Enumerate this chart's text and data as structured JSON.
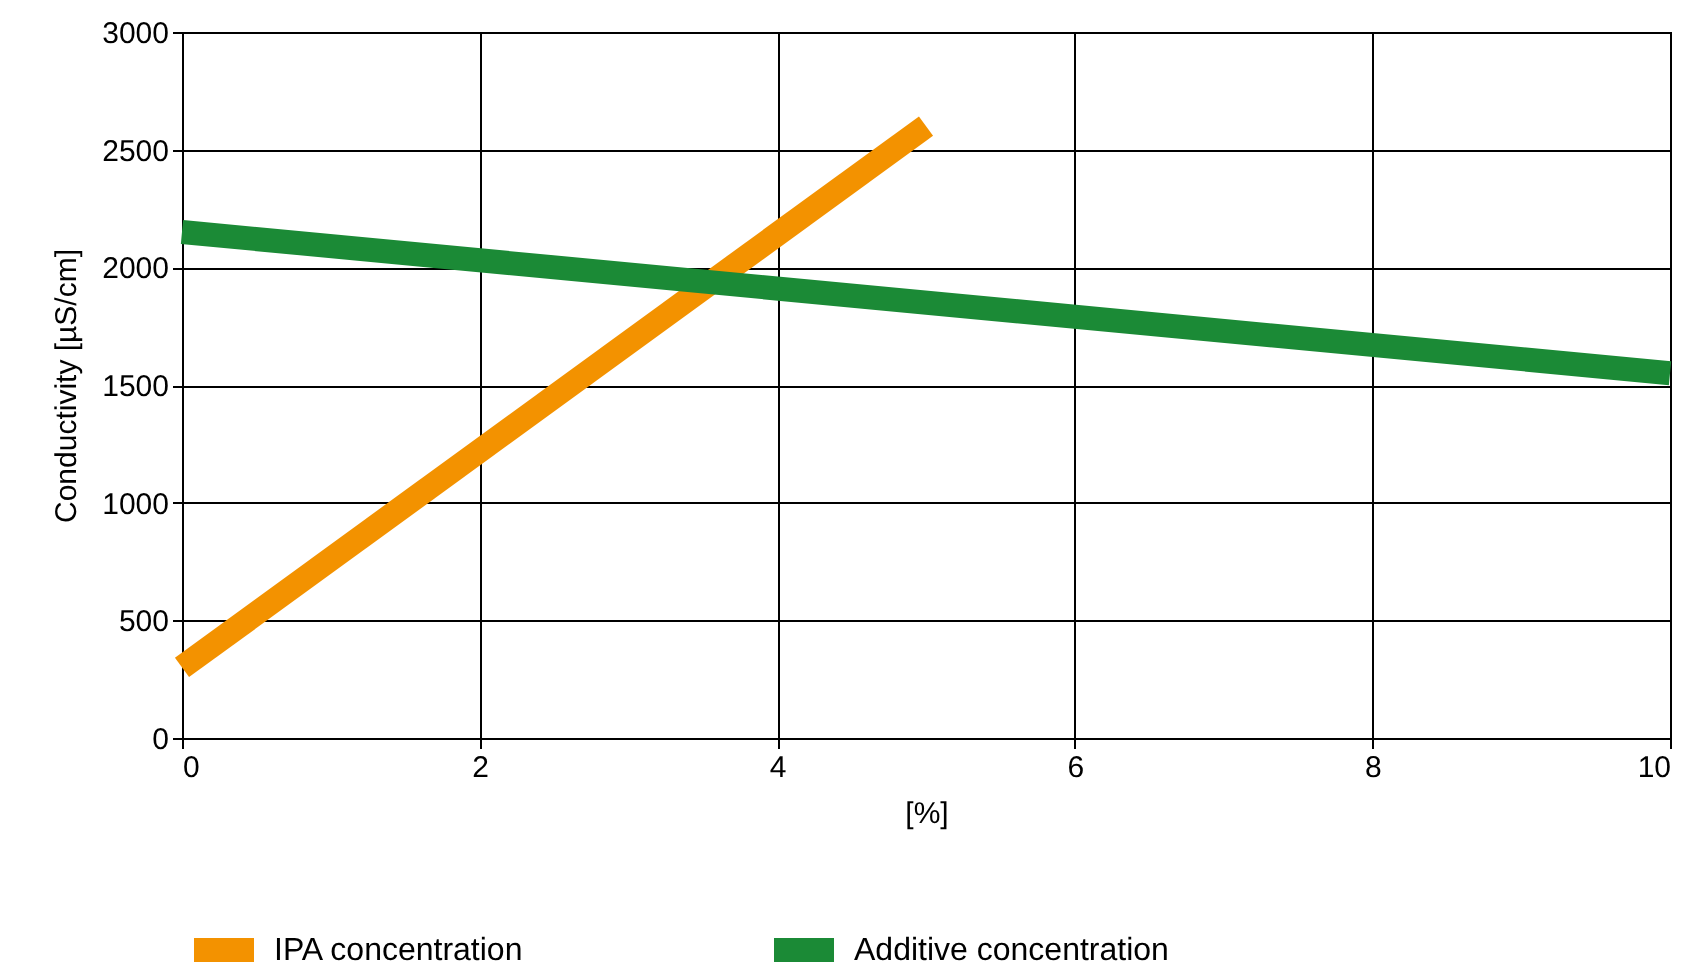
{
  "chart_data": {
    "type": "line",
    "xlabel": "[%]",
    "ylabel": "Conductivity  [µS/cm]",
    "series": [
      {
        "name": "IPA concentration",
        "color": "#f39200",
        "x": [
          0,
          5
        ],
        "values": [
          300,
          2600
        ]
      },
      {
        "name": "Additive concentration",
        "color": "#1b8a36",
        "x": [
          0,
          10
        ],
        "values": [
          2150,
          1550
        ]
      }
    ],
    "xlim": [
      0,
      10
    ],
    "xticks": [
      0,
      2,
      4,
      6,
      8,
      10
    ],
    "ylim": [
      0,
      3000
    ],
    "yticks": [
      0,
      500,
      1000,
      1500,
      2000,
      2500,
      3000
    ],
    "grid": true,
    "legend": "bottom",
    "marker": "none",
    "line_style": "solid"
  }
}
